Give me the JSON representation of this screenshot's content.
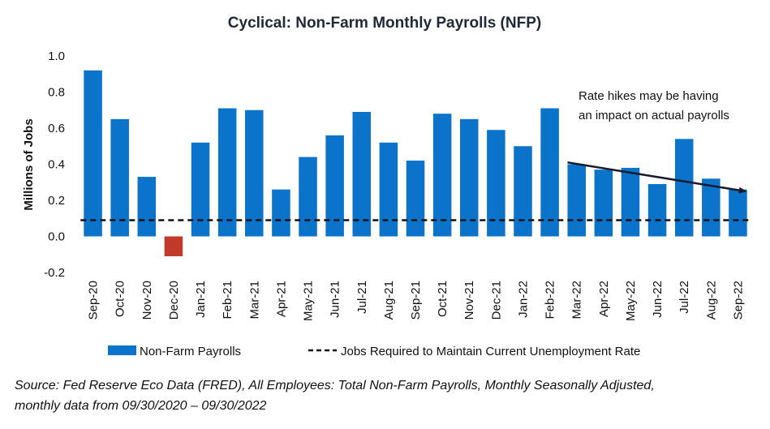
{
  "chart_data": {
    "type": "bar",
    "title": "Cyclical: Non-Farm Monthly Payrolls (NFP)",
    "ylabel": "Millions of Jobs",
    "xlabel": "",
    "ylim": [
      -0.2,
      1.0
    ],
    "yticks": [
      "1.0",
      "0.8",
      "0.6",
      "0.4",
      "0.2",
      "0.0",
      "-0.2"
    ],
    "categories": [
      "Sep-20",
      "Oct-20",
      "Nov-20",
      "Dec-20",
      "Jan-21",
      "Feb-21",
      "Mar-21",
      "Apr-21",
      "May-21",
      "Jun-21",
      "Jul-21",
      "Aug-21",
      "Sep-21",
      "Oct-21",
      "Nov-21",
      "Dec-21",
      "Jan-22",
      "Feb-22",
      "Mar-22",
      "Apr-22",
      "May-22",
      "Jun-22",
      "Jul-22",
      "Aug-22",
      "Sep-22"
    ],
    "series": [
      {
        "name": "Non-Farm Payrolls",
        "values": [
          0.92,
          0.65,
          0.33,
          -0.11,
          0.52,
          0.71,
          0.7,
          0.26,
          0.44,
          0.56,
          0.69,
          0.52,
          0.42,
          0.68,
          0.65,
          0.59,
          0.5,
          0.71,
          0.4,
          0.37,
          0.38,
          0.29,
          0.54,
          0.32,
          0.26
        ],
        "color": "#0b73c9",
        "negative_color": "#c0392b"
      },
      {
        "name": "Jobs Required to Maintain Current Unemployment Rate",
        "constant": 0.09,
        "style": "dashed",
        "color": "#111111"
      }
    ],
    "annotation": {
      "text_line1": "Rate hikes may be having",
      "text_line2": "an impact on actual payrolls",
      "arrow_from_category": "Mar-22",
      "arrow_from_value": 0.41,
      "arrow_to_category": "Sep-22",
      "arrow_to_value": 0.25
    },
    "legend_position": "bottom",
    "grid": false,
    "source_line1": "Source: Fed Reserve Eco Data (FRED), All Employees: Total Non-Farm Payrolls, Monthly Seasonally Adjusted,",
    "source_line2": "monthly data from 09/30/2020 – 09/30/2022"
  }
}
